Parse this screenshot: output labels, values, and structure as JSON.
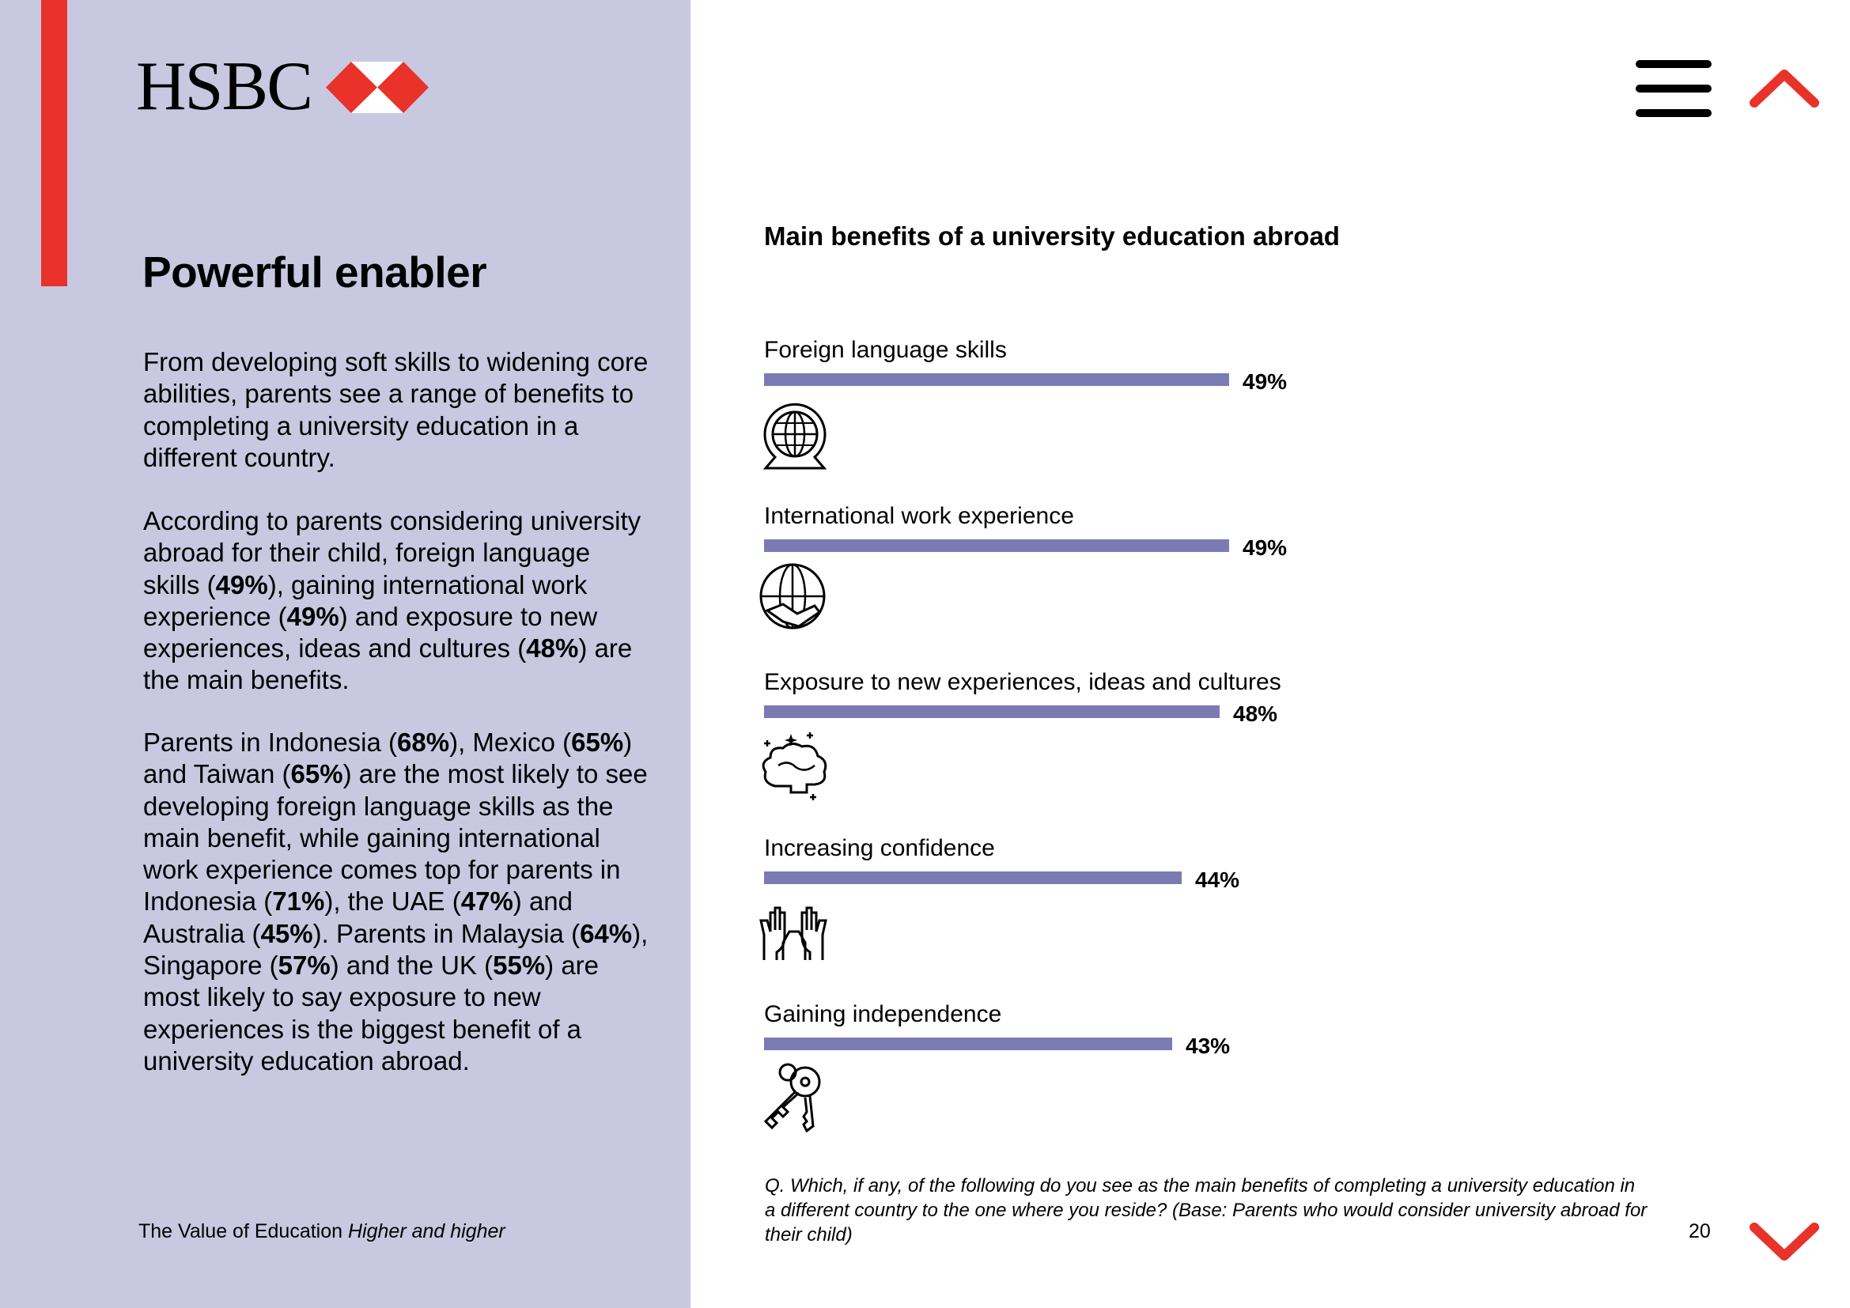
{
  "brand": {
    "name": "HSBC",
    "primary_red": "#e8322a",
    "panel_color": "#c8c8e0",
    "bar_color": "#7b7bb4"
  },
  "nav": {
    "menu_icon": "hamburger-icon",
    "up_icon": "chevron-up-icon",
    "down_icon": "chevron-down-icon"
  },
  "left": {
    "title": "Powerful enabler",
    "p1": "From developing soft skills to widening core abilities, parents see a range of benefits to completing a university education in a different country.",
    "p2": [
      {
        "t": "According to parents considering university abroad for their child, foreign language skills ("
      },
      {
        "t": "49%",
        "b": true
      },
      {
        "t": "), gaining international work experience ("
      },
      {
        "t": "49%",
        "b": true
      },
      {
        "t": ") and exposure to new experiences, ideas and cultures ("
      },
      {
        "t": "48%",
        "b": true
      },
      {
        "t": ") are the main benefits."
      }
    ],
    "p3": [
      {
        "t": "Parents in Indonesia ("
      },
      {
        "t": "68%",
        "b": true
      },
      {
        "t": "), Mexico ("
      },
      {
        "t": "65%",
        "b": true
      },
      {
        "t": ") and Taiwan ("
      },
      {
        "t": "65%",
        "b": true
      },
      {
        "t": ") are the most likely to see developing foreign language skills as the main benefit, while gaining international work experience comes top for parents in Indonesia ("
      },
      {
        "t": "71%",
        "b": true
      },
      {
        "t": "), the UAE ("
      },
      {
        "t": "47%",
        "b": true
      },
      {
        "t": ") and Australia ("
      },
      {
        "t": "45%",
        "b": true
      },
      {
        "t": "). Parents in Malaysia ("
      },
      {
        "t": "64%",
        "b": true
      },
      {
        "t": "), Singapore ("
      },
      {
        "t": "57%",
        "b": true
      },
      {
        "t": ") and the UK ("
      },
      {
        "t": "55%",
        "b": true
      },
      {
        "t": ") are most likely to say exposure to new experiences is the biggest benefit of a university education abroad."
      }
    ]
  },
  "footer": {
    "publication": "The Value of Education",
    "subtitle": "Higher and higher",
    "page_number": "20"
  },
  "chart_data": {
    "type": "bar",
    "orientation": "horizontal",
    "title": "Main benefits of a university education abroad",
    "categories": [
      "Foreign language skills",
      "International work experience",
      "Exposure to new experiences, ideas and cultures",
      "Increasing confidence",
      "Gaining independence"
    ],
    "values": [
      49,
      49,
      48,
      44,
      43
    ],
    "value_labels": [
      "49%",
      "49%",
      "48%",
      "44%",
      "43%"
    ],
    "icons": [
      "globe-speech-icon",
      "globe-handshake-icon",
      "brain-sparkle-icon",
      "raised-hands-icon",
      "keys-icon"
    ],
    "xlim": [
      0,
      100
    ],
    "unit": "%",
    "grid": false,
    "question": "Q. Which, if any, of the following do you see as the main benefits of completing a university education in a different country to the one where you reside? (Base: Parents who would consider university abroad for their child)"
  }
}
